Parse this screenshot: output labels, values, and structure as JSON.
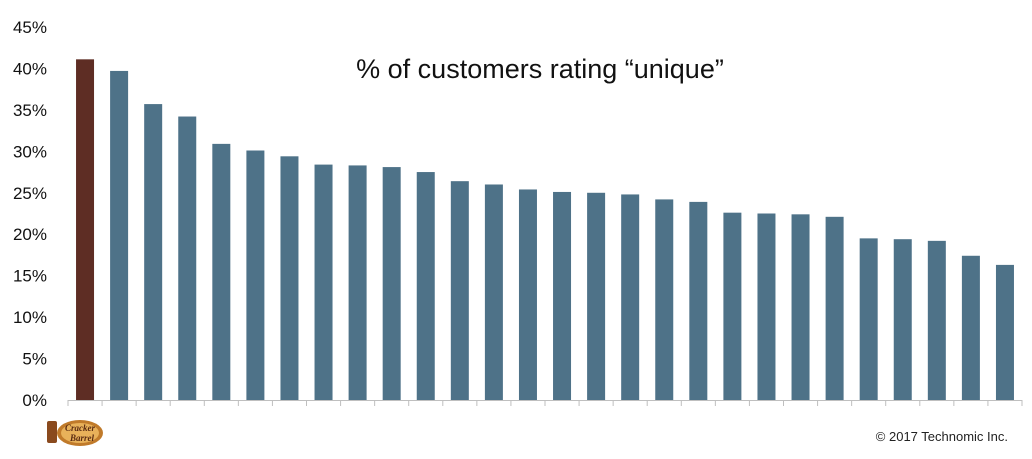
{
  "chart_data": {
    "type": "bar",
    "title": "% of customers rating “unique”",
    "xlabel": "",
    "ylabel": "",
    "ylim": [
      0,
      45
    ],
    "y_ticks": [
      "0%",
      "5%",
      "10%",
      "15%",
      "20%",
      "25%",
      "30%",
      "35%",
      "40%",
      "45%"
    ],
    "y_tick_values": [
      0,
      5,
      10,
      15,
      20,
      25,
      30,
      35,
      40,
      45
    ],
    "grid": false,
    "highlight_color": "#5e2d24",
    "bar_color": "#4e7288",
    "values": [
      41.1,
      39.7,
      35.7,
      34.2,
      30.9,
      30.1,
      29.4,
      28.4,
      28.3,
      28.1,
      27.5,
      26.4,
      26.0,
      25.4,
      25.1,
      25.0,
      24.8,
      24.2,
      23.9,
      22.6,
      22.5,
      22.4,
      22.1,
      19.5,
      19.4,
      19.2,
      17.4,
      16.3
    ],
    "highlight_index": 0
  },
  "footer": {
    "copyright": "© 2017 Technomic Inc.",
    "logo_text_1": "Cracker",
    "logo_text_2": "Barrel"
  }
}
